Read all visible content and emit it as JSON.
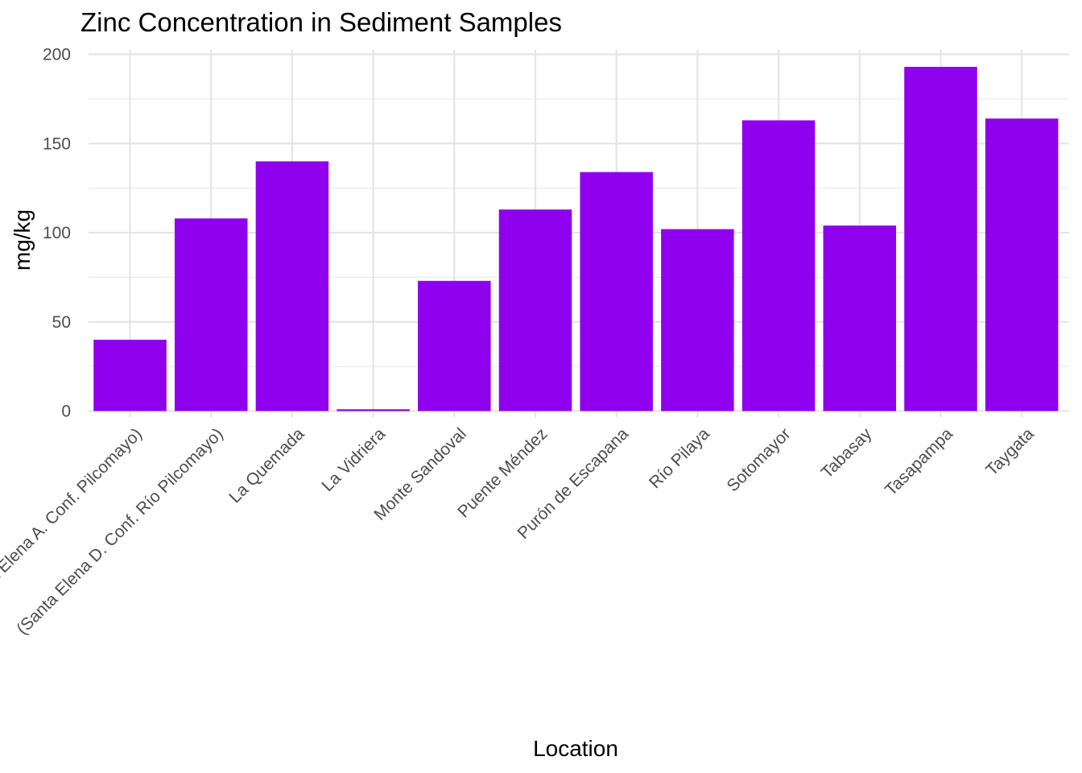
{
  "chart_data": {
    "type": "bar",
    "title": "Zinc Concentration in Sediment Samples",
    "xlabel": "Location",
    "ylabel": "mg/kg",
    "ylim": [
      0,
      200
    ],
    "yticks": [
      0,
      50,
      100,
      150,
      200
    ],
    "ytick_labels": [
      "0",
      "50",
      "100",
      "150",
      "200"
    ],
    "grid": true,
    "legend": "none",
    "bar_color": "#8e00ee",
    "categories": [
      "(Santa Elena A. Conf. Pilcomayo)",
      "(Santa Elena D. Conf. Río Pilcomayo)",
      "La Quemada",
      "La Vidriera",
      "Monte Sandoval",
      "Puente Méndez",
      "Purón de Escapana",
      "Río Pilaya",
      "Sotomayor",
      "Tabasay",
      "Tasapampa",
      "Taygata"
    ],
    "values": [
      40,
      108,
      140,
      1,
      73,
      113,
      134,
      102,
      163,
      104,
      193,
      164
    ]
  }
}
